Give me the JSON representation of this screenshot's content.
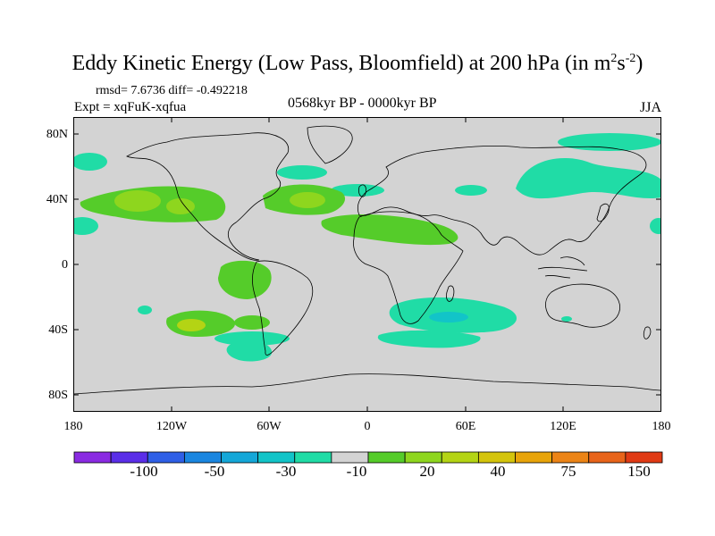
{
  "title": {
    "main": "Eddy Kinetic Energy (Low Pass, Bloomfield) at 200 hPa (in m",
    "sup1": "2",
    "mid": "s",
    "sup2": "-2",
    "end": ")"
  },
  "stats": "rmsd= 7.6736 diff= -0.492218",
  "experiment": "Expt = xqFuK-xqfua",
  "period": "0568kyr BP - 0000kyr BP",
  "season": "JJA",
  "lat_labels": [
    "80N",
    "40N",
    "0",
    "40S",
    "80S"
  ],
  "lon_labels": [
    "180",
    "120W",
    "60W",
    "0",
    "60E",
    "120E",
    "180"
  ],
  "colorbar": {
    "colors": [
      "#8a2be2",
      "#5a2ee8",
      "#2f5fe6",
      "#1a86e0",
      "#14a7d8",
      "#12c4c8",
      "#20dca6",
      "#d3d3d3",
      "#55cc2a",
      "#8ed61e",
      "#b4d414",
      "#d4c40c",
      "#e8a40a",
      "#ec8416",
      "#e8641a",
      "#e03a14"
    ],
    "labels": [
      "-100",
      "-50",
      "-30",
      "-10",
      "20",
      "40",
      "75",
      "150"
    ]
  },
  "colors": {
    "background": "#d3d3d3",
    "green": "#55cc2a",
    "yellow_green": "#8ed61e",
    "cyan": "#20dca6",
    "teal": "#12c4c8",
    "yellow": "#b4d414"
  }
}
